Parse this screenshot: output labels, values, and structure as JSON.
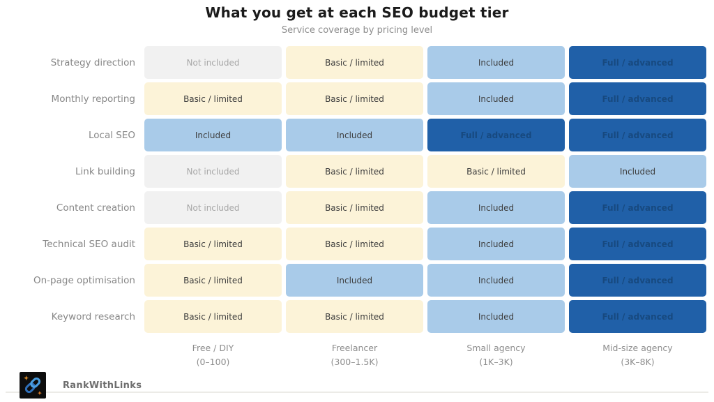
{
  "chart_data": {
    "type": "heatmap",
    "title": "What you get at each SEO budget tier",
    "subtitle": "Service coverage by pricing level",
    "rows": [
      "Strategy direction",
      "Monthly reporting",
      "Local SEO",
      "Link building",
      "Content creation",
      "Technical SEO audit",
      "On-page optimisation",
      "Keyword research"
    ],
    "columns": [
      {
        "label": "Free / DIY",
        "sublabel": "(0–100)"
      },
      {
        "label": "Freelancer",
        "sublabel": "(300–1.5K)"
      },
      {
        "label": "Small agency",
        "sublabel": "(1K–3K)"
      },
      {
        "label": "Mid-size agency",
        "sublabel": "(3K–8K)"
      }
    ],
    "cells": [
      [
        "Not included",
        "Basic / limited",
        "Included",
        "Full / advanced"
      ],
      [
        "Basic / limited",
        "Basic / limited",
        "Included",
        "Full / advanced"
      ],
      [
        "Included",
        "Included",
        "Full / advanced",
        "Full / advanced"
      ],
      [
        "Not included",
        "Basic / limited",
        "Basic / limited",
        "Included"
      ],
      [
        "Not included",
        "Basic / limited",
        "Included",
        "Full / advanced"
      ],
      [
        "Basic / limited",
        "Basic / limited",
        "Included",
        "Full / advanced"
      ],
      [
        "Basic / limited",
        "Included",
        "Included",
        "Full / advanced"
      ],
      [
        "Basic / limited",
        "Basic / limited",
        "Included",
        "Full / advanced"
      ]
    ],
    "levels": {
      "Not included": {
        "bg": "#f1f1f1",
        "text": "#a7a7a7",
        "bold": false
      },
      "Basic / limited": {
        "bg": "#fcf3d8",
        "text": "#3d3d3d",
        "bold": false
      },
      "Included": {
        "bg": "#a9cbe9",
        "text": "#3d3d3d",
        "bold": false
      },
      "Full / advanced": {
        "bg": "#2060a8",
        "text": "#17497f",
        "bold": true
      }
    },
    "legend": null,
    "grid": false
  },
  "footer": {
    "brand": "RankWithLinks",
    "logo_icon": "chain-link-icon",
    "logo_colors": {
      "background": "#0d0d0d",
      "link": "#4a9ee0",
      "sparkle": "#f09a2e"
    }
  }
}
